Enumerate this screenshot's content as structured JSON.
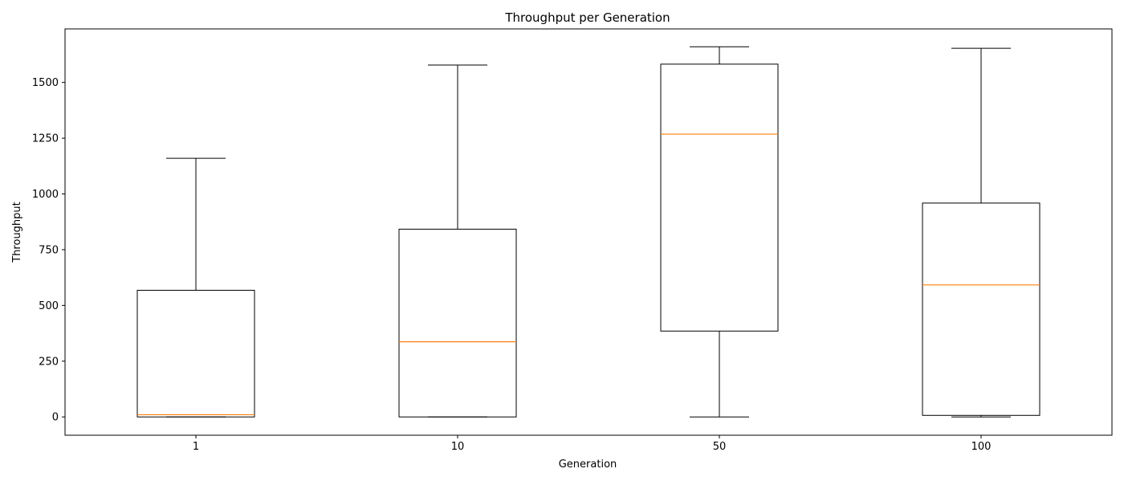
{
  "chart_data": {
    "type": "box",
    "title": "Throughput per Generation",
    "xlabel": "Generation",
    "ylabel": "Throughput",
    "ylim": [
      -82,
      1740
    ],
    "yticks": [
      0,
      250,
      500,
      750,
      1000,
      1250,
      1500
    ],
    "categories": [
      "1",
      "10",
      "50",
      "100"
    ],
    "boxes": [
      {
        "category": "1",
        "whisker_low": 0,
        "q1": 0,
        "median": 10,
        "q3": 568,
        "whisker_high": 1160
      },
      {
        "category": "10",
        "whisker_low": 0,
        "q1": 0,
        "median": 337,
        "q3": 842,
        "whisker_high": 1578
      },
      {
        "category": "50",
        "whisker_low": 0,
        "q1": 385,
        "median": 1268,
        "q3": 1582,
        "whisker_high": 1660
      },
      {
        "category": "100",
        "whisker_low": 0,
        "q1": 7,
        "median": 592,
        "q3": 959,
        "whisker_high": 1653
      }
    ],
    "grid": false,
    "colors": {
      "box": "#000000",
      "median": "#ff7f0e",
      "background": "#ffffff"
    }
  }
}
